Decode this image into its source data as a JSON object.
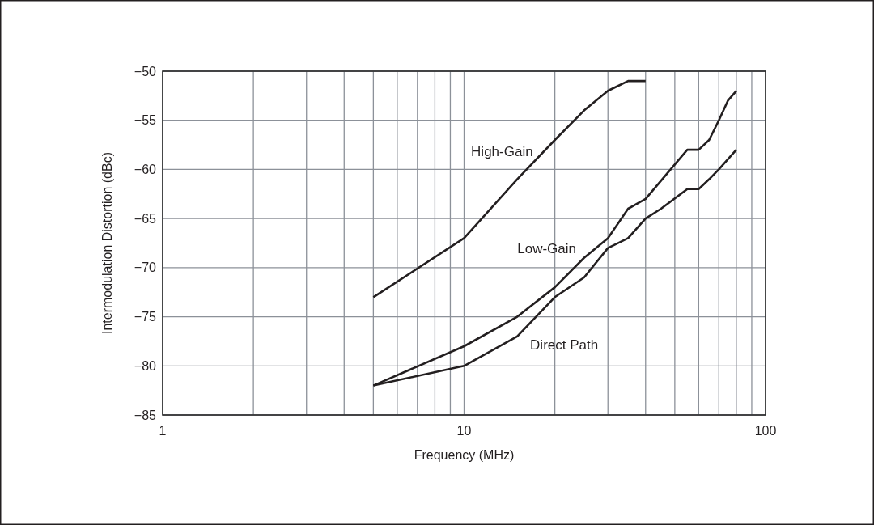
{
  "chart_data": {
    "type": "line",
    "xlabel": "Frequency (MHz)",
    "ylabel": "Intermodulation Distortion (dBc)",
    "log": "x",
    "grid": true,
    "xlim": [
      1,
      100
    ],
    "xticks": [
      1,
      {
        "value": 2,
        "label": null
      },
      {
        "value": 3,
        "label": null
      },
      {
        "value": 4,
        "label": null
      },
      {
        "value": 5,
        "label": null
      },
      {
        "value": 6,
        "label": null
      },
      {
        "value": 7,
        "label": null
      },
      {
        "value": 8,
        "label": null
      },
      {
        "value": 9,
        "label": null
      },
      10,
      {
        "value": 20,
        "label": null
      },
      {
        "value": 30,
        "label": null
      },
      {
        "value": 40,
        "label": null
      },
      {
        "value": 50,
        "label": null
      },
      {
        "value": 60,
        "label": null
      },
      {
        "value": 70,
        "label": null
      },
      {
        "value": 80,
        "label": null
      },
      {
        "value": 90,
        "label": null
      },
      100
    ],
    "ylim": [
      -85,
      -50
    ],
    "yticks": [
      {
        "value": -85,
        "label": "−85"
      },
      {
        "value": -80,
        "label": "−80"
      },
      {
        "value": -75,
        "label": "−75"
      },
      {
        "value": -70,
        "label": "−70"
      },
      {
        "value": -65,
        "label": "−65"
      },
      {
        "value": -60,
        "label": "−60"
      },
      {
        "value": -55,
        "label": "−55"
      },
      {
        "value": -50,
        "label": "−50"
      }
    ],
    "series": [
      {
        "name": "High-Gain",
        "color": "#231f20",
        "x": [
          5,
          10,
          15,
          20,
          25,
          30,
          35,
          40
        ],
        "values": [
          -73,
          -67,
          -61,
          -57,
          -54,
          -52,
          -51,
          -51
        ]
      },
      {
        "name": "Low-Gain",
        "color": "#231f20",
        "x": [
          5,
          10,
          15,
          20,
          25,
          30,
          35,
          40,
          55,
          60,
          65,
          70,
          75,
          80
        ],
        "values": [
          -82,
          -78,
          -75,
          -72,
          -69,
          -67,
          -64,
          -63,
          -58,
          -58,
          -57,
          -55,
          -53,
          -52
        ]
      },
      {
        "name": "Direct Path",
        "color": "#231f20",
        "x": [
          5,
          10,
          15,
          20,
          25,
          30,
          35,
          40,
          45,
          55,
          60,
          65,
          70,
          80
        ],
        "values": [
          -82,
          -80,
          -77,
          -73,
          -71,
          -68,
          -67,
          -65,
          -64,
          -62,
          -62,
          -61,
          -60,
          -58
        ]
      }
    ]
  }
}
